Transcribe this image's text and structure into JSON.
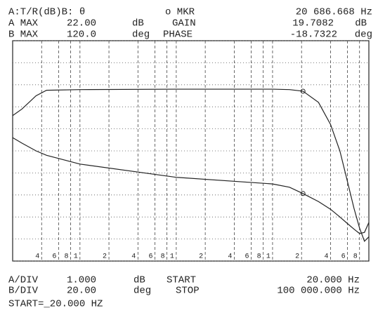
{
  "chart_data": {
    "type": "line",
    "header": [
      [
        "A:T/R(dB)B: θ",
        "o MKR"
      ],
      [
        "A MAX",
        "22.00",
        "dB",
        "GAIN",
        "dB"
      ],
      [
        "B MAX",
        "120.0",
        "deg",
        "PHASE",
        "deg"
      ]
    ],
    "footer": [
      [
        "A/DIV",
        "1.000",
        "dB",
        "START",
        "20.000 Hz"
      ],
      [
        "B/DIV",
        "20.00",
        "deg",
        "STOP",
        "100 000.000 Hz"
      ],
      [
        "START=_20.000 HZ"
      ]
    ],
    "marker_freq": {
      "value": 20686.668,
      "label": "20 686.668 Hz"
    },
    "marker_gain": {
      "value": 19.7082,
      "label": "19.7082"
    },
    "marker_phase": {
      "value": -18.7322,
      "label": "-18.7322"
    },
    "x": [
      20,
      25,
      35,
      45,
      100,
      1000,
      10000,
      15000,
      20686.668,
      30000,
      40000,
      50000,
      60000,
      70000,
      80000,
      90000,
      100000
    ],
    "xlim": [
      20,
      100000
    ],
    "xlog": true,
    "xticks": [
      {
        "value": 40,
        "label": "4"
      },
      {
        "value": 60,
        "label": "6"
      },
      {
        "value": 80,
        "label": "8"
      },
      {
        "value": 100,
        "label": "1"
      },
      {
        "value": 200,
        "label": "2"
      },
      {
        "value": 400,
        "label": "4"
      },
      {
        "value": 600,
        "label": "6"
      },
      {
        "value": 800,
        "label": "8"
      },
      {
        "value": 1000,
        "label": "1"
      },
      {
        "value": 2000,
        "label": "2"
      },
      {
        "value": 4000,
        "label": "4"
      },
      {
        "value": 6000,
        "label": "6"
      },
      {
        "value": 8000,
        "label": "8"
      },
      {
        "value": 10000,
        "label": "1"
      },
      {
        "value": 20000,
        "label": "2"
      },
      {
        "value": 40000,
        "label": "4"
      },
      {
        "value": 60000,
        "label": "6"
      },
      {
        "value": 80000,
        "label": "8"
      }
    ],
    "ylim": [
      12,
      22
    ],
    "yticks": [
      12,
      13,
      14,
      15,
      16,
      17,
      18,
      19,
      20,
      21,
      22
    ],
    "y2lim": [
      -80,
      120
    ],
    "grid": true,
    "series": [
      {
        "name": "GAIN",
        "color": "#222222",
        "axis": "y",
        "values": [
          18.6,
          18.9,
          19.5,
          19.75,
          19.78,
          19.8,
          19.8,
          19.78,
          19.71,
          19.2,
          18.2,
          17.0,
          15.6,
          14.4,
          13.5,
          12.9,
          13.1
        ]
      },
      {
        "name": "PHASE",
        "color": "#222222",
        "axis": "y2",
        "values": [
          32,
          27,
          20,
          16,
          8,
          -4,
          -10,
          -13,
          -18.73,
          -26,
          -33,
          -40,
          -46,
          -51,
          -55,
          -54,
          -45
        ]
      }
    ]
  }
}
